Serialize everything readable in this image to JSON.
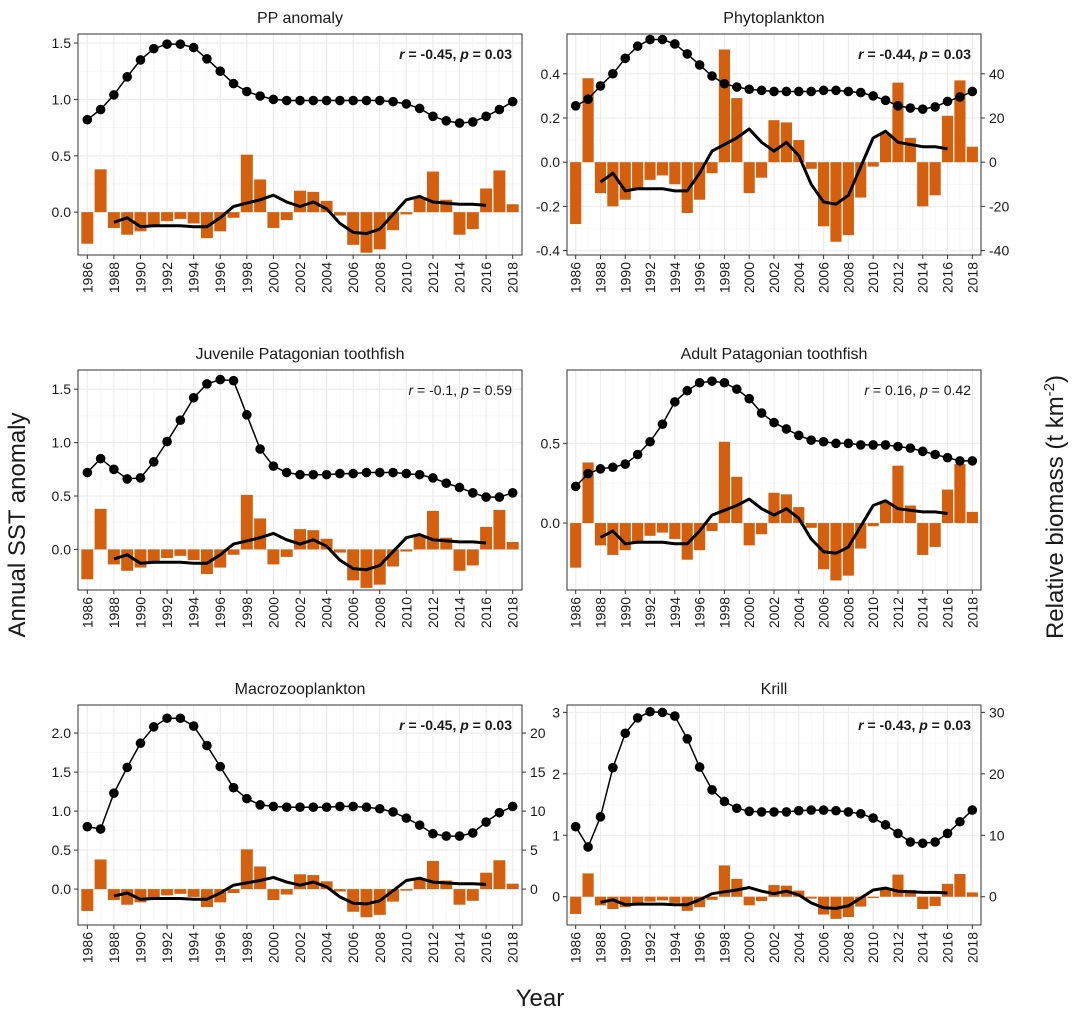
{
  "figure": {
    "y_left_label": "Annual SST anomaly",
    "y_right_label_main": "Relative biomass (t km",
    "y_right_label_sup": "-2",
    "y_right_label_close": ")",
    "x_label": "Year"
  },
  "colors": {
    "bar": "#d45f0f",
    "line": "#000000",
    "panel_bg": "#ffffff",
    "grid": "#ebebeb",
    "border": "#333333"
  },
  "sst": {
    "years": [
      1986,
      1987,
      1988,
      1989,
      1990,
      1991,
      1992,
      1993,
      1994,
      1995,
      1996,
      1997,
      1998,
      1999,
      2000,
      2001,
      2002,
      2003,
      2004,
      2005,
      2006,
      2007,
      2008,
      2009,
      2010,
      2011,
      2012,
      2013,
      2014,
      2015,
      2016,
      2017,
      2018
    ],
    "bars": [
      -0.28,
      0.38,
      -0.14,
      -0.2,
      -0.17,
      -0.12,
      -0.08,
      -0.06,
      -0.1,
      -0.23,
      -0.17,
      -0.05,
      0.51,
      0.29,
      -0.14,
      -0.07,
      0.19,
      0.18,
      0.1,
      -0.03,
      -0.29,
      -0.36,
      -0.33,
      -0.16,
      -0.02,
      0.13,
      0.36,
      0.11,
      -0.2,
      -0.15,
      0.21,
      0.37,
      0.07
    ],
    "trend_years": [
      1988,
      1989,
      1990,
      1991,
      1992,
      1993,
      1994,
      1995,
      1996,
      1997,
      1998,
      1999,
      2000,
      2001,
      2002,
      2003,
      2004,
      2005,
      2006,
      2007,
      2008,
      2009,
      2010,
      2011,
      2012,
      2013,
      2014,
      2015,
      2016
    ],
    "trend": [
      -0.09,
      -0.05,
      -0.13,
      -0.12,
      -0.12,
      -0.12,
      -0.13,
      -0.13,
      -0.05,
      0.05,
      0.08,
      0.11,
      0.15,
      0.09,
      0.05,
      0.09,
      0.03,
      -0.1,
      -0.18,
      -0.19,
      -0.15,
      -0.02,
      0.11,
      0.14,
      0.09,
      0.08,
      0.07,
      0.07,
      0.06
    ]
  },
  "chart_data": [
    {
      "type": "bar+line",
      "title": "PP anomaly",
      "annotation": {
        "r": "-0.45",
        "p": "0.03",
        "bold": true
      },
      "ylim": [
        -0.38,
        1.58
      ],
      "y_ticks": [
        -0.0,
        0.5,
        1.0,
        1.5
      ],
      "y_tick_labels": [
        "0.0",
        "0.5",
        "1.0",
        "1.5"
      ],
      "right_axis": null,
      "series": [
        {
          "name": "PP anomaly",
          "values": [
            0.82,
            0.91,
            1.04,
            1.2,
            1.35,
            1.45,
            1.49,
            1.49,
            1.46,
            1.36,
            1.25,
            1.14,
            1.07,
            1.03,
            1.0,
            0.99,
            0.99,
            0.99,
            0.99,
            0.99,
            0.99,
            0.99,
            0.99,
            0.98,
            0.96,
            0.92,
            0.85,
            0.81,
            0.79,
            0.8,
            0.85,
            0.91,
            0.98
          ]
        }
      ]
    },
    {
      "type": "bar+line",
      "title": "Phytoplankton",
      "annotation": {
        "r": "-0.44",
        "p": "0.03",
        "bold": true
      },
      "ylim": [
        -0.42,
        0.58
      ],
      "y_ticks": [
        -0.4,
        -0.2,
        0.0,
        0.2,
        0.4
      ],
      "y_tick_labels": [
        "-0.4",
        "-0.2",
        "0.0",
        "0.2",
        "0.4"
      ],
      "right_axis": {
        "ticks": [
          -40,
          -20,
          0,
          20,
          40
        ],
        "tick_labels": [
          "-40",
          "-20",
          "0",
          "20",
          "40"
        ]
      },
      "series": [
        {
          "name": "Phytoplankton relative biomass",
          "values": [
            25.5,
            28.5,
            34.5,
            40.0,
            47.0,
            52.5,
            55.5,
            55.5,
            53.5,
            49.0,
            44.0,
            39.0,
            35.5,
            34.0,
            33.0,
            32.5,
            32.0,
            32.0,
            32.0,
            32.0,
            32.5,
            32.5,
            32.0,
            31.5,
            30.0,
            28.0,
            25.5,
            24.5,
            24.0,
            25.0,
            27.5,
            29.5,
            32.0
          ]
        }
      ]
    },
    {
      "type": "bar+line",
      "title": "Juvenile Patagonian toothfish",
      "annotation": {
        "r": "-0.1",
        "p": "0.59",
        "bold": false
      },
      "ylim": [
        -0.38,
        1.68
      ],
      "y_ticks": [
        -0.0,
        0.5,
        1.0,
        1.5
      ],
      "y_tick_labels": [
        "0.0",
        "0.5",
        "1.0",
        "1.5"
      ],
      "right_axis": null,
      "series": [
        {
          "name": "Juvenile Patagonian toothfish",
          "values": [
            0.72,
            0.85,
            0.75,
            0.66,
            0.67,
            0.82,
            1.01,
            1.21,
            1.42,
            1.55,
            1.59,
            1.58,
            1.26,
            0.94,
            0.78,
            0.72,
            0.7,
            0.7,
            0.7,
            0.71,
            0.71,
            0.72,
            0.72,
            0.72,
            0.71,
            0.7,
            0.67,
            0.62,
            0.58,
            0.53,
            0.49,
            0.49,
            0.53
          ]
        }
      ]
    },
    {
      "type": "bar+line",
      "title": "Adult Patagonian toothfish",
      "annotation": {
        "r": "0.16",
        "p": "0.42",
        "bold": false
      },
      "ylim": [
        -0.42,
        0.96
      ],
      "y_ticks": [
        -0.0,
        0.5
      ],
      "y_tick_labels": [
        "0.0",
        "0.5"
      ],
      "right_axis": null,
      "series": [
        {
          "name": "Adult Patagonian toothfish",
          "values": [
            0.23,
            0.31,
            0.34,
            0.35,
            0.37,
            0.43,
            0.51,
            0.62,
            0.76,
            0.83,
            0.88,
            0.89,
            0.88,
            0.84,
            0.78,
            0.69,
            0.63,
            0.59,
            0.55,
            0.52,
            0.51,
            0.5,
            0.5,
            0.49,
            0.49,
            0.49,
            0.48,
            0.47,
            0.45,
            0.43,
            0.41,
            0.39,
            0.39
          ]
        }
      ]
    },
    {
      "type": "bar+line",
      "title": "Macrozooplankton",
      "annotation": {
        "r": "-0.45",
        "p": "0.03",
        "bold": true
      },
      "ylim": [
        -0.46,
        2.36
      ],
      "y_ticks": [
        0.0,
        0.5,
        1.0,
        1.5,
        2.0
      ],
      "y_tick_labels": [
        "0.0",
        "0.5",
        "1.0",
        "1.5",
        "2.0"
      ],
      "right_axis": {
        "ticks": [
          0,
          5,
          10,
          15,
          20
        ],
        "tick_labels": [
          "0",
          "5",
          "10",
          "15",
          "20"
        ]
      },
      "series": [
        {
          "name": "Macrozooplankton relative biomass",
          "values": [
            8.0,
            7.7,
            12.3,
            15.6,
            18.7,
            20.8,
            21.9,
            21.9,
            20.9,
            18.4,
            15.7,
            13.0,
            11.6,
            10.8,
            10.6,
            10.5,
            10.5,
            10.5,
            10.5,
            10.6,
            10.6,
            10.5,
            10.3,
            9.9,
            9.1,
            8.2,
            7.1,
            6.8,
            6.8,
            7.2,
            8.6,
            9.8,
            10.6
          ]
        }
      ]
    },
    {
      "type": "bar+line",
      "title": "Krill",
      "annotation": {
        "r": "-0.43",
        "p": "0.03",
        "bold": true
      },
      "ylim": [
        -0.46,
        3.12
      ],
      "y_ticks": [
        0,
        1,
        2,
        3
      ],
      "y_tick_labels": [
        "0",
        "1",
        "2",
        "3"
      ],
      "right_axis": {
        "ticks": [
          0,
          10,
          20,
          30
        ],
        "tick_labels": [
          "0",
          "10",
          "20",
          "30"
        ]
      },
      "series": [
        {
          "name": "Krill relative biomass",
          "values": [
            11.4,
            8.1,
            13.0,
            21.0,
            26.6,
            29.1,
            30.1,
            30.0,
            29.4,
            25.7,
            21.1,
            17.4,
            15.5,
            14.4,
            13.9,
            13.8,
            13.8,
            13.8,
            14.0,
            14.1,
            14.1,
            14.0,
            13.8,
            13.5,
            12.8,
            11.7,
            10.3,
            8.9,
            8.7,
            8.9,
            10.3,
            12.2,
            14.1
          ]
        }
      ]
    }
  ]
}
